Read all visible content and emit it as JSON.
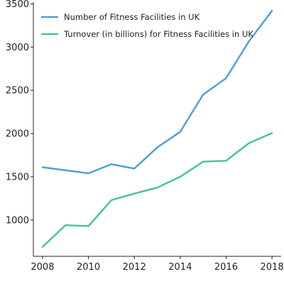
{
  "chart_data": {
    "type": "line",
    "title": "",
    "xlabel": "",
    "ylabel": "",
    "x": [
      2008,
      2009,
      2010,
      2011,
      2012,
      2013,
      2014,
      2015,
      2016,
      2017,
      2018
    ],
    "xlim": [
      2007.6,
      2018.4
    ],
    "ylim": [
      580,
      3520
    ],
    "xticks": [
      "2008",
      "2010",
      "2012",
      "2014",
      "2016",
      "2018"
    ],
    "yticks": [
      "1000",
      "1500",
      "2000",
      "2500",
      "3000",
      "3500"
    ],
    "grid": false,
    "legend_position": "top-left",
    "series": [
      {
        "name": "Number of Fitness Facilities in UK",
        "color": "#4c9fcf",
        "values": [
          1610,
          1575,
          1540,
          1645,
          1595,
          1840,
          2020,
          2450,
          2640,
          3070,
          3420
        ]
      },
      {
        "name": "Turnover (in billions) for Fitness Facilities in UK",
        "color": "#3fc49a",
        "values": [
          690,
          940,
          930,
          1230,
          1305,
          1375,
          1500,
          1675,
          1685,
          1890,
          2005
        ]
      }
    ]
  }
}
